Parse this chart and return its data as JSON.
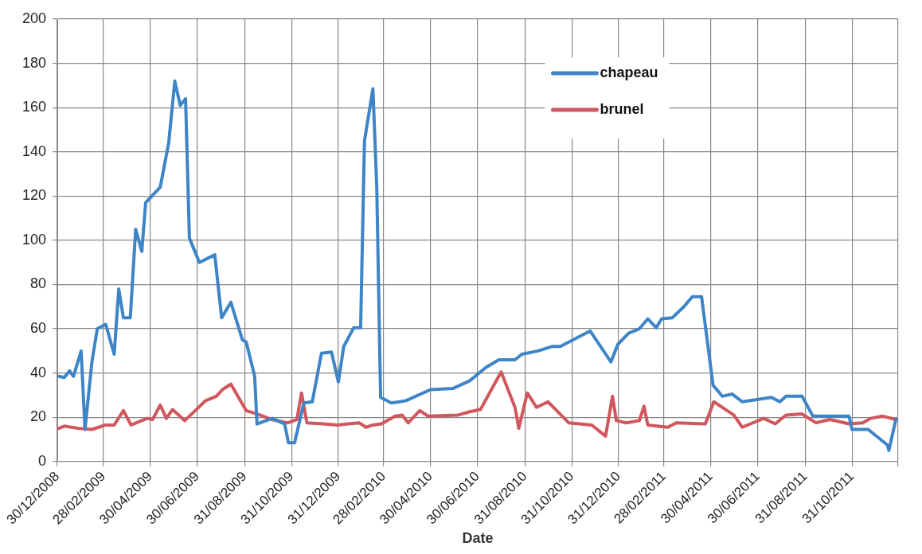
{
  "chart_data": {
    "type": "line",
    "xlabel": "Date",
    "xlim": [
      "2008-12-30",
      "2011-12-30"
    ],
    "xticks": [
      {
        "value": "2008-12-30",
        "label": "30/12/2008"
      },
      {
        "value": "2009-02-28",
        "label": "28/02/2009"
      },
      {
        "value": "2009-04-30",
        "label": "30/04/2009"
      },
      {
        "value": "2009-06-30",
        "label": "30/06/2009"
      },
      {
        "value": "2009-08-31",
        "label": "31/08/2009"
      },
      {
        "value": "2009-10-31",
        "label": "31/10/2009"
      },
      {
        "value": "2009-12-31",
        "label": "31/12/2009"
      },
      {
        "value": "2010-02-28",
        "label": "28/02/2010"
      },
      {
        "value": "2010-04-30",
        "label": "30/04/2010"
      },
      {
        "value": "2010-06-30",
        "label": "30/06/2010"
      },
      {
        "value": "2010-08-31",
        "label": "31/08/2010"
      },
      {
        "value": "2010-10-31",
        "label": "31/10/2010"
      },
      {
        "value": "2010-12-31",
        "label": "31/12/2010"
      },
      {
        "value": "2011-02-28",
        "label": "28/02/2011"
      },
      {
        "value": "2011-04-30",
        "label": "30/04/2011"
      },
      {
        "value": "2011-06-30",
        "label": "30/06/2011"
      },
      {
        "value": "2011-08-31",
        "label": "31/08/2011"
      },
      {
        "value": "2011-10-31",
        "label": "31/10/2011"
      },
      {
        "value": "2011-12-30",
        "label": null
      }
    ],
    "ylim": [
      0,
      200
    ],
    "yticks": [
      0,
      20,
      40,
      60,
      80,
      100,
      120,
      140,
      160,
      180,
      200
    ],
    "grid": true,
    "legend": "top right",
    "marker": "none",
    "line_style": "solid",
    "series": [
      {
        "name": "chapeau",
        "color": "#3d85c6",
        "x": [
          "2009-01-01",
          "2009-01-08",
          "2009-01-15",
          "2009-01-20",
          "2009-01-30",
          "2009-02-04",
          "2009-02-13",
          "2009-02-20",
          "2009-03-03",
          "2009-03-14",
          "2009-03-20",
          "2009-03-26",
          "2009-04-04",
          "2009-04-11",
          "2009-04-19",
          "2009-04-24",
          "2009-05-13",
          "2009-05-24",
          "2009-06-01",
          "2009-06-08",
          "2009-06-15",
          "2009-06-20",
          "2009-07-03",
          "2009-07-23",
          "2009-08-01",
          "2009-08-13",
          "2009-08-28",
          "2009-09-02",
          "2009-09-13",
          "2009-09-16",
          "2009-10-06",
          "2009-10-22",
          "2009-10-27",
          "2009-11-04",
          "2009-11-16",
          "2009-11-27",
          "2009-12-09",
          "2009-12-22",
          "2009-12-31",
          "2010-01-07",
          "2010-01-20",
          "2010-01-29",
          "2010-02-03",
          "2010-02-14",
          "2010-02-19",
          "2010-02-24",
          "2010-03-10",
          "2010-03-29",
          "2010-04-30",
          "2010-05-29",
          "2010-06-20",
          "2010-07-11",
          "2010-07-28",
          "2010-08-18",
          "2010-08-27",
          "2010-09-17",
          "2010-10-05",
          "2010-10-16",
          "2010-11-24",
          "2010-12-21",
          "2010-12-30",
          "2011-01-13",
          "2011-01-27",
          "2011-02-07",
          "2011-02-18",
          "2011-02-25",
          "2011-03-11",
          "2011-03-26",
          "2011-04-06",
          "2011-04-18",
          "2011-05-03",
          "2011-05-15",
          "2011-05-28",
          "2011-06-10",
          "2011-07-18",
          "2011-07-29",
          "2011-08-06",
          "2011-08-27",
          "2011-09-10",
          "2011-10-27",
          "2011-10-31",
          "2011-11-21",
          "2011-12-16",
          "2011-12-18",
          "2011-12-27"
        ],
        "values": [
          38.5,
          38,
          41,
          38.5,
          50,
          14.5,
          45,
          60,
          62,
          48.5,
          78,
          65,
          65,
          105,
          95,
          117,
          124,
          144,
          172,
          161,
          164,
          101,
          90,
          93.5,
          65,
          72,
          55,
          54,
          38.5,
          17,
          19.5,
          17,
          8.5,
          8.5,
          26.5,
          27,
          49,
          49.5,
          36,
          52,
          60.5,
          60.5,
          145,
          168.5,
          124,
          29,
          26.5,
          27.5,
          32.5,
          33,
          36.5,
          42.5,
          46,
          46,
          48.5,
          50,
          52,
          52,
          59,
          45,
          53,
          58,
          60,
          64.5,
          60.5,
          64.5,
          65,
          70,
          74.5,
          74.5,
          34.5,
          29.5,
          30.5,
          27,
          29,
          27,
          29.5,
          29.5,
          20.5,
          20.5,
          14.5,
          14.5,
          7.5,
          5,
          19
        ]
      },
      {
        "name": "brunel",
        "color": "#d0575d",
        "x": [
          "2009-01-01",
          "2009-01-08",
          "2009-01-26",
          "2009-02-13",
          "2009-03-03",
          "2009-03-14",
          "2009-03-26",
          "2009-04-05",
          "2009-04-19",
          "2009-04-26",
          "2009-05-03",
          "2009-05-13",
          "2009-05-21",
          "2009-05-29",
          "2009-06-14",
          "2009-07-11",
          "2009-07-25",
          "2009-08-02",
          "2009-08-13",
          "2009-08-23",
          "2009-09-02",
          "2009-09-20",
          "2009-10-05",
          "2009-10-26",
          "2009-11-07",
          "2009-11-13",
          "2009-11-20",
          "2009-12-11",
          "2009-12-30",
          "2010-01-13",
          "2010-01-27",
          "2010-02-05",
          "2010-02-14",
          "2010-02-25",
          "2010-03-15",
          "2010-03-24",
          "2010-04-01",
          "2010-04-16",
          "2010-04-27",
          "2010-06-05",
          "2010-06-20",
          "2010-07-04",
          "2010-07-31",
          "2010-08-18",
          "2010-08-23",
          "2010-09-03",
          "2010-09-15",
          "2010-09-30",
          "2010-10-27",
          "2010-11-26",
          "2010-12-14",
          "2010-12-23",
          "2010-12-28",
          "2011-01-10",
          "2011-01-27",
          "2011-02-02",
          "2011-02-07",
          "2011-03-05",
          "2011-03-16",
          "2011-04-23",
          "2011-05-04",
          "2011-05-30",
          "2011-06-10",
          "2011-07-08",
          "2011-07-23",
          "2011-08-06",
          "2011-08-27",
          "2011-09-14",
          "2011-10-02",
          "2011-10-27",
          "2011-11-14",
          "2011-11-24",
          "2011-12-10",
          "2011-12-27"
        ],
        "values": [
          15,
          16,
          15,
          14.5,
          16.5,
          16.5,
          23,
          16.5,
          18.5,
          19.5,
          19,
          25.5,
          19.5,
          23.5,
          18.5,
          27.5,
          29.5,
          32.5,
          35,
          29,
          23,
          21,
          19,
          17.5,
          19,
          31,
          17.5,
          17,
          16.5,
          17,
          17.5,
          15.5,
          16.5,
          17,
          20.5,
          21,
          17.5,
          23,
          20.5,
          21,
          22.5,
          23.5,
          40.5,
          24.5,
          15,
          31,
          24.5,
          27,
          17.5,
          16.5,
          11.5,
          29.5,
          18.5,
          17.5,
          18.5,
          25,
          16.5,
          15.5,
          17.5,
          17,
          27,
          21,
          15.5,
          19.5,
          17,
          21,
          21.5,
          17.5,
          19,
          17,
          17.5,
          19.5,
          20.5,
          19
        ]
      }
    ]
  }
}
